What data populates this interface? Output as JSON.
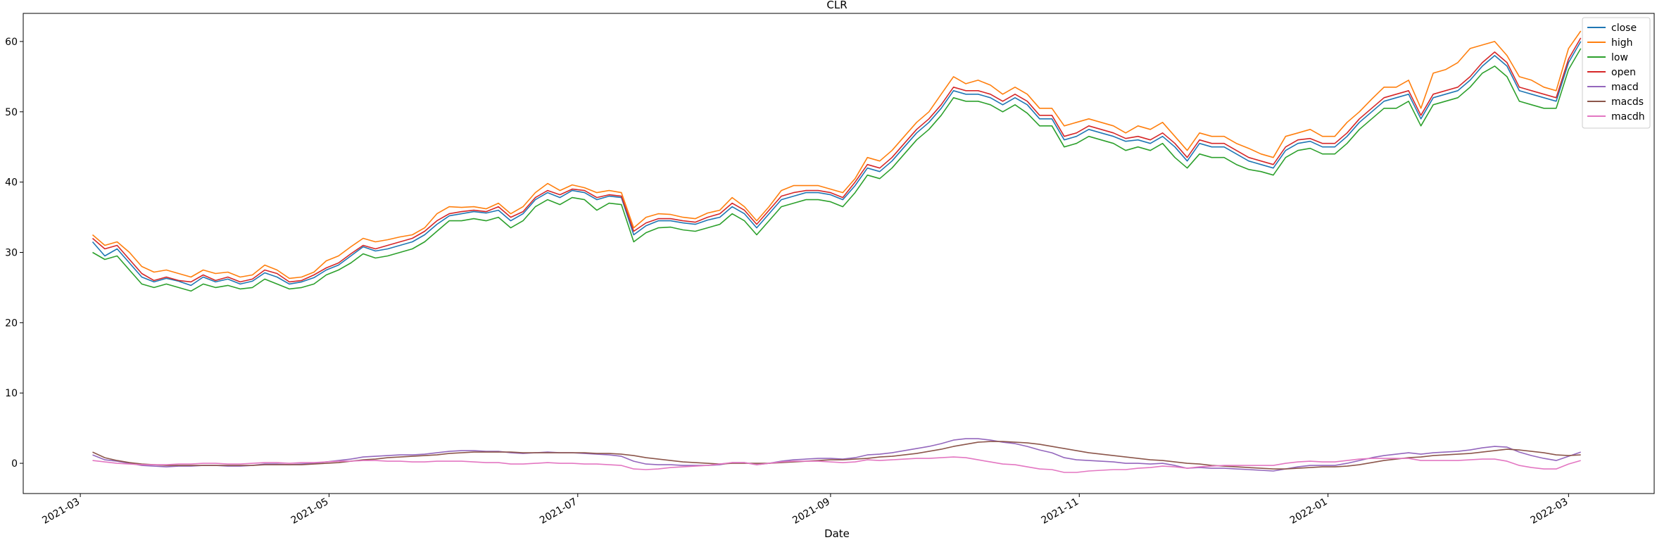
{
  "chart_data": {
    "type": "line",
    "title": "CLR",
    "xlabel": "Date",
    "ylabel": "",
    "x_start": "2021-03-04",
    "x_end": "2022-03-04",
    "xlim": [
      "2021-02-15",
      "2022-03-22"
    ],
    "ylim": [
      -4.3,
      64.0
    ],
    "grid": false,
    "legend_position": "upper right",
    "x_ticks": [
      {
        "date": "2021-03-01",
        "label": "2021-03"
      },
      {
        "date": "2021-05-01",
        "label": "2021-05"
      },
      {
        "date": "2021-07-01",
        "label": "2021-07"
      },
      {
        "date": "2021-09-01",
        "label": "2021-09"
      },
      {
        "date": "2021-11-01",
        "label": "2021-11"
      },
      {
        "date": "2022-01-01",
        "label": "2022-01"
      },
      {
        "date": "2022-03-01",
        "label": "2022-03"
      }
    ],
    "y_ticks": [
      {
        "value": 0,
        "label": "0"
      },
      {
        "value": 10,
        "label": "10"
      },
      {
        "value": 20,
        "label": "20"
      },
      {
        "value": 30,
        "label": "30"
      },
      {
        "value": 40,
        "label": "40"
      },
      {
        "value": 50,
        "label": "50"
      },
      {
        "value": 60,
        "label": "60"
      }
    ],
    "series": [
      {
        "name": "close",
        "color": "#1f77b4",
        "values": [
          31.5,
          29.5,
          30.5,
          28.5,
          26.5,
          25.8,
          26.3,
          25.9,
          25.3,
          26.5,
          25.8,
          26.2,
          25.5,
          25.9,
          27.1,
          26.5,
          25.5,
          25.8,
          26.4,
          27.5,
          28.2,
          29.5,
          30.8,
          30.2,
          30.5,
          31.0,
          31.5,
          32.5,
          34.0,
          35.2,
          35.5,
          35.8,
          35.6,
          36.0,
          34.5,
          35.5,
          37.5,
          38.5,
          37.8,
          38.8,
          38.5,
          37.5,
          38.0,
          37.8,
          32.5,
          33.8,
          34.5,
          34.5,
          34.2,
          34.0,
          34.6,
          35.0,
          36.5,
          35.5,
          33.5,
          35.5,
          37.5,
          38.0,
          38.5,
          38.5,
          38.2,
          37.5,
          39.5,
          42.0,
          41.5,
          43.0,
          45.0,
          47.0,
          48.5,
          50.5,
          53.0,
          52.5,
          52.5,
          52.0,
          51.0,
          52.0,
          51.0,
          49.0,
          49.0,
          46.0,
          46.5,
          47.5,
          47.0,
          46.5,
          45.8,
          46.0,
          45.5,
          46.5,
          45.0,
          43.0,
          45.5,
          45.0,
          45.0,
          44.0,
          43.0,
          42.5,
          42.0,
          44.5,
          45.5,
          45.8,
          45.0,
          45.0,
          46.5,
          48.5,
          50.0,
          51.5,
          52.0,
          52.5,
          49.0,
          52.0,
          52.5,
          53.0,
          54.5,
          56.5,
          58.0,
          56.5,
          53.0,
          52.5,
          52.0,
          51.5,
          57.0,
          60.0
        ]
      },
      {
        "name": "high",
        "color": "#ff7f0e",
        "values": [
          32.5,
          31.0,
          31.5,
          30.0,
          28.0,
          27.2,
          27.5,
          27.0,
          26.5,
          27.5,
          27.0,
          27.2,
          26.5,
          26.8,
          28.2,
          27.5,
          26.3,
          26.5,
          27.2,
          28.8,
          29.5,
          30.8,
          32.0,
          31.5,
          31.8,
          32.2,
          32.5,
          33.5,
          35.5,
          36.5,
          36.4,
          36.5,
          36.2,
          37.0,
          35.5,
          36.5,
          38.5,
          39.8,
          38.8,
          39.6,
          39.2,
          38.5,
          38.8,
          38.5,
          33.5,
          35.0,
          35.5,
          35.4,
          35.0,
          34.8,
          35.6,
          36.0,
          37.8,
          36.5,
          34.5,
          36.5,
          38.8,
          39.5,
          39.5,
          39.5,
          39.0,
          38.5,
          40.5,
          43.5,
          43.0,
          44.5,
          46.5,
          48.5,
          50.0,
          52.5,
          55.0,
          54.0,
          54.5,
          53.8,
          52.5,
          53.5,
          52.5,
          50.5,
          50.5,
          48.0,
          48.5,
          49.0,
          48.5,
          48.0,
          47.0,
          48.0,
          47.5,
          48.5,
          46.5,
          44.5,
          47.0,
          46.5,
          46.5,
          45.5,
          44.8,
          44.0,
          43.5,
          46.5,
          47.0,
          47.5,
          46.5,
          46.5,
          48.5,
          50.0,
          51.8,
          53.5,
          53.5,
          54.5,
          50.5,
          55.5,
          56.0,
          57.0,
          59.0,
          59.5,
          60.0,
          58.0,
          55.0,
          54.5,
          53.5,
          53.0,
          59.0,
          61.5
        ]
      },
      {
        "name": "low",
        "color": "#2ca02c",
        "values": [
          30.0,
          29.0,
          29.5,
          27.5,
          25.5,
          25.0,
          25.5,
          25.0,
          24.5,
          25.5,
          25.0,
          25.3,
          24.8,
          25.0,
          26.2,
          25.5,
          24.8,
          25.0,
          25.5,
          26.8,
          27.5,
          28.5,
          29.8,
          29.2,
          29.5,
          30.0,
          30.5,
          31.5,
          33.0,
          34.5,
          34.5,
          34.8,
          34.5,
          35.0,
          33.5,
          34.5,
          36.5,
          37.5,
          36.8,
          37.8,
          37.5,
          36.0,
          37.0,
          36.8,
          31.5,
          32.8,
          33.5,
          33.6,
          33.2,
          33.0,
          33.5,
          34.0,
          35.5,
          34.5,
          32.5,
          34.5,
          36.5,
          37.0,
          37.5,
          37.5,
          37.2,
          36.5,
          38.5,
          41.0,
          40.5,
          42.0,
          44.0,
          46.0,
          47.5,
          49.5,
          52.0,
          51.5,
          51.5,
          51.0,
          50.0,
          51.0,
          49.8,
          48.0,
          48.0,
          45.0,
          45.5,
          46.5,
          46.0,
          45.5,
          44.5,
          45.0,
          44.5,
          45.5,
          43.5,
          42.0,
          44.0,
          43.5,
          43.5,
          42.5,
          41.8,
          41.5,
          41.0,
          43.5,
          44.5,
          44.8,
          44.0,
          44.0,
          45.5,
          47.5,
          49.0,
          50.5,
          50.5,
          51.5,
          48.0,
          51.0,
          51.5,
          52.0,
          53.5,
          55.5,
          56.5,
          55.0,
          51.5,
          51.0,
          50.5,
          50.5,
          56.0,
          59.0
        ]
      },
      {
        "name": "open",
        "color": "#d62728",
        "values": [
          32.0,
          30.5,
          31.0,
          29.0,
          27.0,
          26.0,
          26.5,
          26.0,
          25.8,
          26.8,
          26.0,
          26.5,
          25.8,
          26.2,
          27.5,
          27.0,
          25.8,
          26.0,
          26.8,
          27.8,
          28.5,
          29.8,
          31.0,
          30.5,
          31.0,
          31.5,
          32.0,
          33.0,
          34.5,
          35.5,
          35.8,
          36.0,
          35.8,
          36.5,
          35.0,
          35.8,
          37.8,
          38.8,
          38.2,
          39.0,
          38.8,
          37.8,
          38.2,
          38.0,
          33.0,
          34.2,
          34.8,
          34.8,
          34.5,
          34.3,
          35.0,
          35.5,
          37.0,
          36.0,
          34.0,
          36.0,
          38.0,
          38.5,
          38.8,
          38.8,
          38.5,
          37.8,
          40.0,
          42.5,
          42.0,
          43.5,
          45.5,
          47.5,
          49.0,
          51.0,
          53.5,
          53.0,
          53.0,
          52.5,
          51.5,
          52.5,
          51.5,
          49.5,
          49.5,
          46.5,
          47.0,
          48.0,
          47.5,
          47.0,
          46.2,
          46.5,
          46.0,
          47.0,
          45.5,
          43.5,
          46.0,
          45.5,
          45.5,
          44.5,
          43.5,
          43.0,
          42.5,
          45.0,
          46.0,
          46.2,
          45.5,
          45.5,
          47.0,
          49.0,
          50.5,
          52.0,
          52.5,
          53.0,
          49.5,
          52.5,
          53.0,
          53.5,
          55.0,
          57.0,
          58.5,
          57.0,
          53.5,
          53.0,
          52.5,
          52.0,
          57.5,
          60.5
        ]
      },
      {
        "name": "macd",
        "color": "#9467bd",
        "values": [
          1.2,
          0.5,
          0.3,
          0.0,
          -0.3,
          -0.4,
          -0.5,
          -0.4,
          -0.4,
          -0.3,
          -0.3,
          -0.4,
          -0.4,
          -0.3,
          -0.1,
          -0.1,
          -0.2,
          -0.1,
          0.0,
          0.2,
          0.4,
          0.6,
          0.9,
          1.0,
          1.1,
          1.2,
          1.2,
          1.3,
          1.5,
          1.7,
          1.8,
          1.8,
          1.7,
          1.7,
          1.5,
          1.4,
          1.5,
          1.6,
          1.5,
          1.5,
          1.4,
          1.3,
          1.2,
          1.0,
          0.3,
          -0.1,
          -0.2,
          -0.2,
          -0.3,
          -0.3,
          -0.3,
          -0.2,
          0.1,
          0.1,
          -0.2,
          0.0,
          0.3,
          0.5,
          0.6,
          0.7,
          0.7,
          0.6,
          0.8,
          1.2,
          1.3,
          1.5,
          1.8,
          2.1,
          2.4,
          2.8,
          3.3,
          3.5,
          3.5,
          3.3,
          3.0,
          2.8,
          2.4,
          1.9,
          1.5,
          0.8,
          0.5,
          0.4,
          0.3,
          0.2,
          0.0,
          0.0,
          -0.1,
          0.0,
          -0.3,
          -0.7,
          -0.6,
          -0.7,
          -0.7,
          -0.8,
          -0.9,
          -1.0,
          -1.1,
          -0.8,
          -0.5,
          -0.3,
          -0.3,
          -0.3,
          0.0,
          0.4,
          0.8,
          1.1,
          1.3,
          1.5,
          1.3,
          1.5,
          1.6,
          1.7,
          1.9,
          2.2,
          2.4,
          2.3,
          1.6,
          1.1,
          0.7,
          0.4,
          1.0,
          1.6
        ]
      },
      {
        "name": "macds",
        "color": "#8c564b",
        "values": [
          1.6,
          0.8,
          0.4,
          0.1,
          -0.1,
          -0.2,
          -0.3,
          -0.3,
          -0.3,
          -0.3,
          -0.3,
          -0.3,
          -0.3,
          -0.3,
          -0.2,
          -0.2,
          -0.2,
          -0.2,
          -0.1,
          0.0,
          0.1,
          0.3,
          0.5,
          0.6,
          0.8,
          0.9,
          1.0,
          1.1,
          1.2,
          1.4,
          1.5,
          1.6,
          1.6,
          1.6,
          1.6,
          1.5,
          1.5,
          1.5,
          1.5,
          1.5,
          1.5,
          1.4,
          1.4,
          1.3,
          1.1,
          0.8,
          0.6,
          0.4,
          0.2,
          0.1,
          0.0,
          -0.1,
          0.0,
          0.0,
          0.0,
          0.0,
          0.1,
          0.2,
          0.3,
          0.4,
          0.5,
          0.5,
          0.6,
          0.7,
          0.9,
          1.0,
          1.2,
          1.4,
          1.7,
          2.0,
          2.4,
          2.7,
          3.0,
          3.1,
          3.1,
          3.0,
          2.9,
          2.7,
          2.4,
          2.1,
          1.8,
          1.5,
          1.3,
          1.1,
          0.9,
          0.7,
          0.5,
          0.4,
          0.2,
          0.0,
          -0.1,
          -0.3,
          -0.4,
          -0.5,
          -0.6,
          -0.7,
          -0.8,
          -0.8,
          -0.7,
          -0.6,
          -0.5,
          -0.5,
          -0.4,
          -0.2,
          0.1,
          0.4,
          0.6,
          0.8,
          0.9,
          1.1,
          1.2,
          1.3,
          1.4,
          1.6,
          1.8,
          2.0,
          1.9,
          1.7,
          1.5,
          1.2,
          1.1,
          1.2
        ]
      },
      {
        "name": "macdh",
        "color": "#e377c2",
        "values": [
          0.4,
          0.2,
          0.0,
          -0.1,
          -0.2,
          -0.2,
          -0.2,
          -0.1,
          -0.1,
          0.0,
          0.0,
          -0.1,
          -0.1,
          0.0,
          0.1,
          0.1,
          0.0,
          0.1,
          0.1,
          0.2,
          0.3,
          0.3,
          0.4,
          0.4,
          0.3,
          0.3,
          0.2,
          0.2,
          0.3,
          0.3,
          0.3,
          0.2,
          0.1,
          0.1,
          -0.1,
          -0.1,
          0.0,
          0.1,
          0.0,
          0.0,
          -0.1,
          -0.1,
          -0.2,
          -0.3,
          -0.8,
          -0.9,
          -0.8,
          -0.6,
          -0.5,
          -0.4,
          -0.3,
          -0.1,
          0.1,
          0.1,
          -0.2,
          0.0,
          0.2,
          0.3,
          0.3,
          0.3,
          0.2,
          0.1,
          0.2,
          0.5,
          0.4,
          0.5,
          0.6,
          0.7,
          0.7,
          0.8,
          0.9,
          0.8,
          0.5,
          0.2,
          -0.1,
          -0.2,
          -0.5,
          -0.8,
          -0.9,
          -1.3,
          -1.3,
          -1.1,
          -1.0,
          -0.9,
          -0.9,
          -0.7,
          -0.6,
          -0.4,
          -0.5,
          -0.7,
          -0.5,
          -0.4,
          -0.3,
          -0.3,
          -0.3,
          -0.3,
          -0.3,
          0.0,
          0.2,
          0.3,
          0.2,
          0.2,
          0.4,
          0.6,
          0.7,
          0.7,
          0.7,
          0.7,
          0.4,
          0.4,
          0.4,
          0.4,
          0.5,
          0.6,
          0.6,
          0.3,
          -0.3,
          -0.6,
          -0.8,
          -0.8,
          -0.1,
          0.4
        ]
      }
    ]
  }
}
